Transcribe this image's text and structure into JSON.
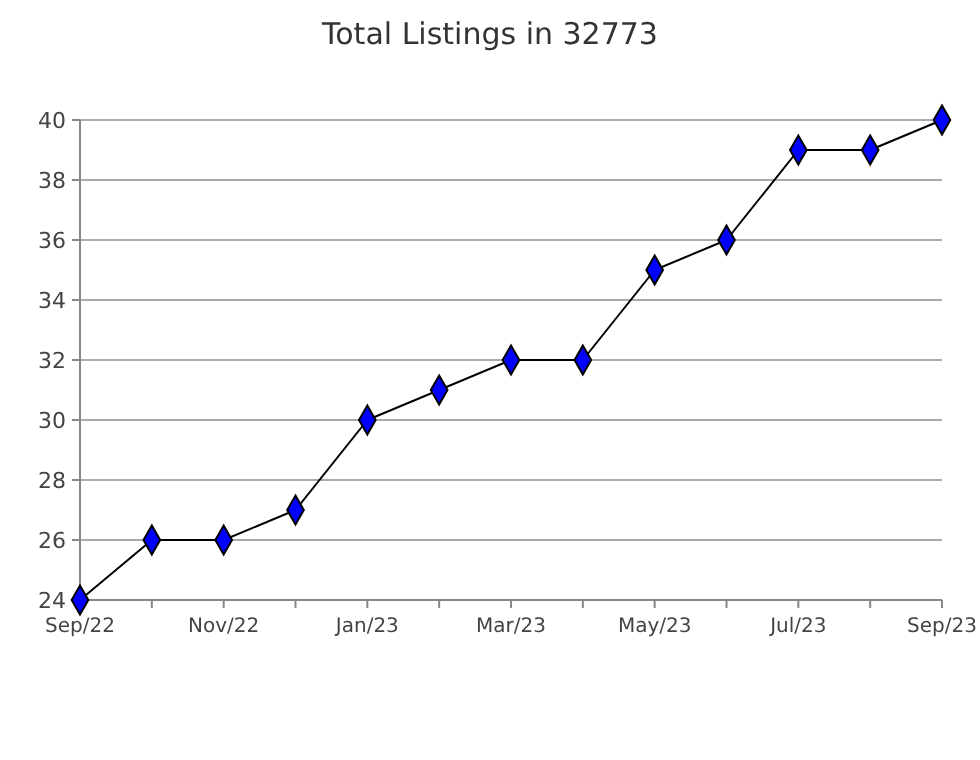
{
  "chart_data": {
    "type": "line",
    "title": "Total Listings in 32773",
    "categories": [
      "Sep/22",
      null,
      "Nov/22",
      null,
      "Jan/23",
      null,
      "Mar/23",
      null,
      "May/23",
      null,
      "Jul/23",
      null,
      "Sep/23"
    ],
    "series": [
      {
        "color": "#0000ff",
        "values": [
          24,
          26,
          26,
          27,
          30,
          31,
          32,
          32,
          35,
          36,
          39,
          39,
          40
        ]
      }
    ],
    "ylim": [
      24,
      40
    ],
    "yticks": [
      24,
      26,
      28,
      30,
      32,
      34,
      36,
      38,
      40
    ],
    "grid": "y",
    "marker": "diamond",
    "line_style": "solid"
  }
}
